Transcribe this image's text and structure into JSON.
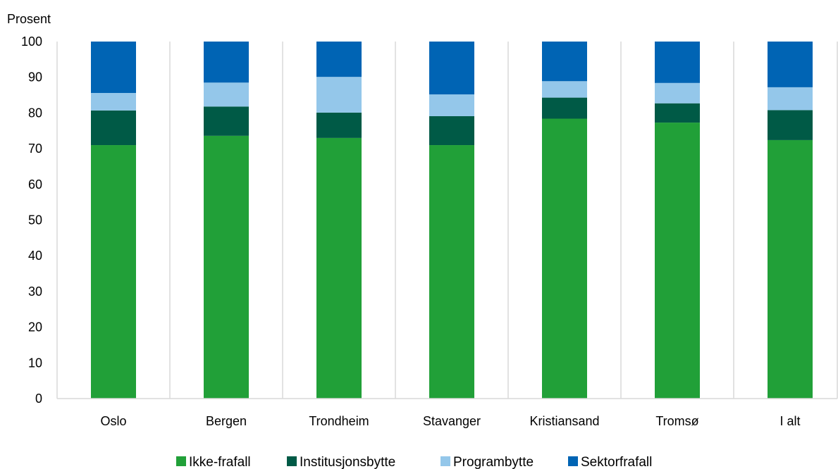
{
  "chart_data": {
    "type": "bar",
    "stacked": true,
    "ylabel": "Prosent",
    "ylim": [
      0,
      100
    ],
    "yticks": [
      0,
      10,
      20,
      30,
      40,
      50,
      60,
      70,
      80,
      90,
      100
    ],
    "grid": "vertical",
    "legend_position": "bottom",
    "categories": [
      "Oslo",
      "Bergen",
      "Trondheim",
      "Stavanger",
      "Kristiansand",
      "Tromsø",
      "I alt"
    ],
    "series": [
      {
        "name": "Ikke-frafall",
        "color": "#21a038",
        "values": [
          71.0,
          73.6,
          73.0,
          71.0,
          78.4,
          77.3,
          72.4
        ]
      },
      {
        "name": "Institusjonsbytte",
        "color": "#005a46",
        "values": [
          9.7,
          8.2,
          7.1,
          8.1,
          5.9,
          5.4,
          8.4
        ]
      },
      {
        "name": "Programbytte",
        "color": "#94c7ea",
        "values": [
          4.9,
          6.7,
          10.0,
          6.1,
          4.6,
          5.7,
          6.4
        ]
      },
      {
        "name": "Sektorfrafall",
        "color": "#0064b4",
        "values": [
          14.4,
          11.5,
          9.9,
          14.8,
          11.1,
          11.6,
          12.8
        ]
      }
    ]
  }
}
